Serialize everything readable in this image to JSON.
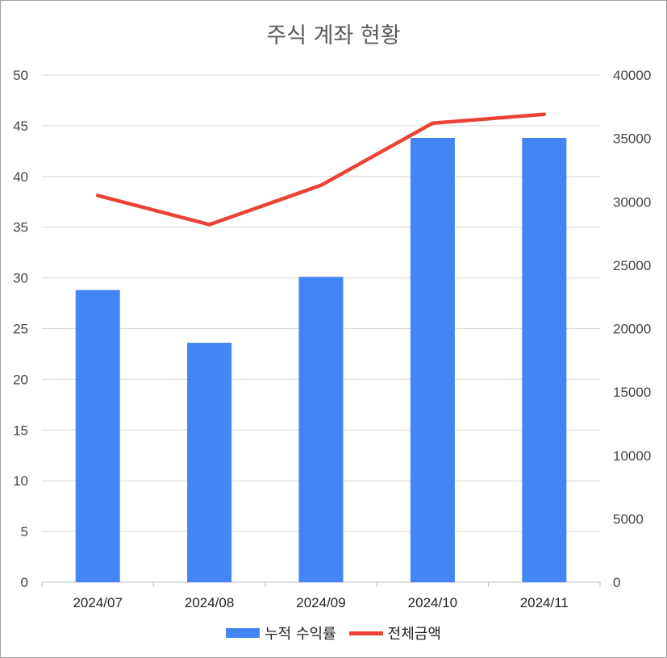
{
  "chart_data": {
    "type": "bar",
    "title": "주식 계좌 현황",
    "categories": [
      "2024/07",
      "2024/08",
      "2024/09",
      "2024/10",
      "2024/11"
    ],
    "series": [
      {
        "name": "누적 수익률",
        "type": "bar",
        "axis": "left",
        "color": "#4285f4",
        "values": [
          28.8,
          23.6,
          30.1,
          43.8,
          43.8
        ]
      },
      {
        "name": "전체금액",
        "type": "line",
        "axis": "right",
        "color": "#ea4335",
        "values": [
          30500,
          28200,
          31300,
          36200,
          36900
        ]
      }
    ],
    "y_left": {
      "min": 0,
      "max": 50,
      "step": 5,
      "ticks": [
        "0",
        "5",
        "10",
        "15",
        "20",
        "25",
        "30",
        "35",
        "40",
        "45",
        "50"
      ]
    },
    "y_right": {
      "min": 0,
      "max": 40000,
      "step": 5000,
      "ticks": [
        "0",
        "5000",
        "10000",
        "15000",
        "20000",
        "25000",
        "30000",
        "35000",
        "40000"
      ]
    },
    "grid": true,
    "legend_position": "bottom"
  }
}
